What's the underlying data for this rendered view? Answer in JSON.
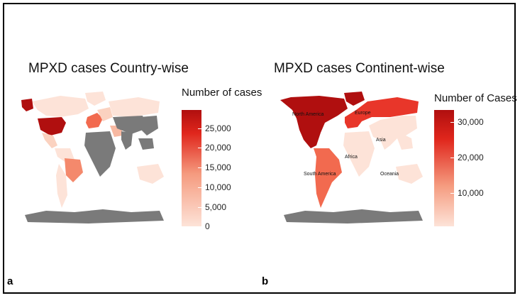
{
  "panel_a": {
    "letter": "a",
    "title": "MPXD cases Country-wise",
    "legend_title": "Number of cases",
    "legend_ticks": [
      "25,000",
      "20,000",
      "15,000",
      "10,000",
      "5,000",
      "0"
    ]
  },
  "panel_b": {
    "letter": "b",
    "title": "MPXD cases Continent-wise",
    "legend_title": "Number of Cases",
    "legend_ticks": [
      "30,000",
      "20,000",
      "10,000"
    ],
    "continent_labels": {
      "north_america": "North America",
      "europe": "Europe",
      "asia": "Asia",
      "africa": "Africa",
      "south_america": "South America",
      "oceania": "Oceania"
    }
  },
  "colors": {
    "no_data": "#7a7a7a",
    "scale_low": "#fde3d8",
    "scale_mid": "#f26a4f",
    "scale_high": "#b00f0f",
    "background": "#ffffff"
  }
}
